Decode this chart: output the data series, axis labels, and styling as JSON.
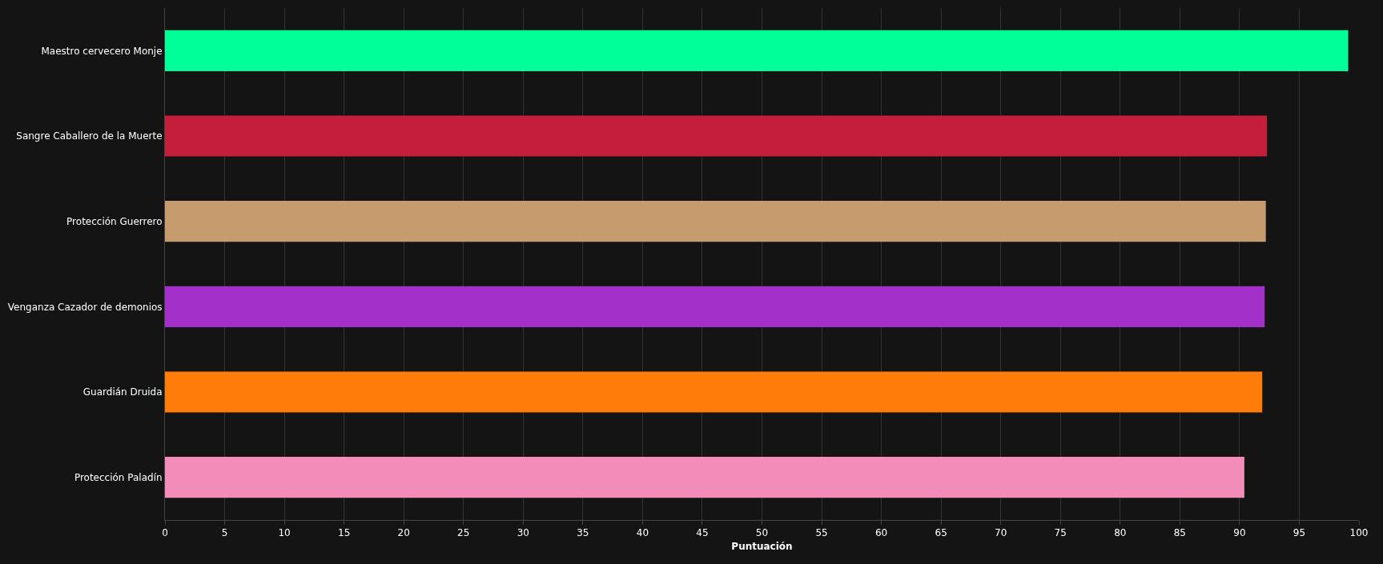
{
  "chart_data": {
    "type": "bar",
    "orientation": "horizontal",
    "xlabel": "Puntuación",
    "categories": [
      "Maestro cervecero Monje",
      "Sangre Caballero de la Muerte",
      "Protección Guerrero",
      "Venganza Cazador de demonios",
      "Guardián Druida",
      "Protección Paladín"
    ],
    "values": [
      99.1,
      92.3,
      92.2,
      92.1,
      91.9,
      90.4
    ],
    "colors": [
      "#00ff98",
      "#c41e3a",
      "#c69b6d",
      "#a330c9",
      "#ff7c0a",
      "#f48cba"
    ],
    "xlim": [
      0,
      100
    ],
    "xticks": [
      0,
      5,
      10,
      15,
      20,
      25,
      30,
      35,
      40,
      45,
      50,
      55,
      60,
      65,
      70,
      75,
      80,
      85,
      90,
      95,
      100
    ],
    "grid": "x",
    "legend": false
  }
}
